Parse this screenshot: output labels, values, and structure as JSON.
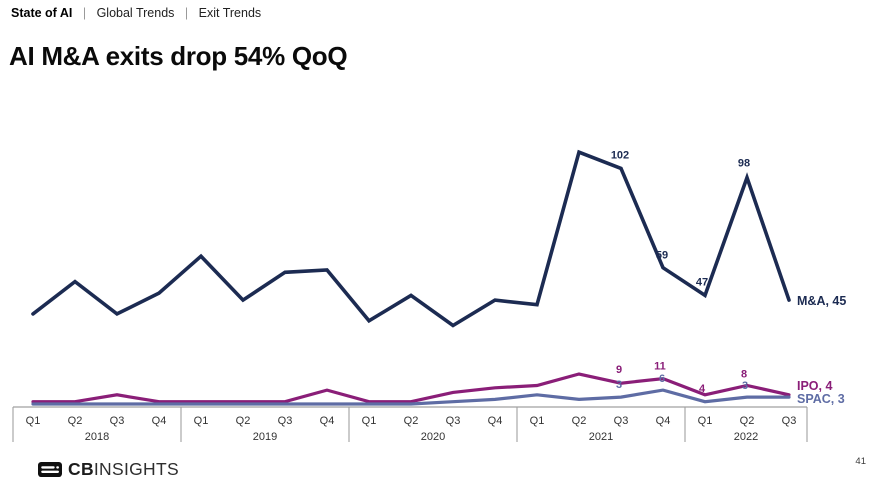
{
  "breadcrumb": {
    "brand": "State of AI",
    "separator": "|",
    "items": [
      "Global Trends",
      "Exit Trends"
    ]
  },
  "title": "AI M&A exits drop 54% QoQ",
  "footer": {
    "logo_cb": "CB",
    "logo_insights": "INSIGHTS",
    "page_number": "41"
  },
  "colors": {
    "mna": "#1c2b52",
    "ipo": "#8a1e78",
    "spac": "#5e6ca4",
    "axis": "#a0a0a0",
    "axis_text": "#333333"
  },
  "chart_data": {
    "type": "line",
    "title": "AI M&A exits drop 54% QoQ",
    "grid": false,
    "legend": "end-of-line-labels",
    "ylim": [
      0,
      115
    ],
    "x_axis": {
      "groups": [
        {
          "year": "2018",
          "quarters": [
            "Q1",
            "Q2",
            "Q3",
            "Q4"
          ]
        },
        {
          "year": "2019",
          "quarters": [
            "Q1",
            "Q2",
            "Q3",
            "Q4"
          ]
        },
        {
          "year": "2020",
          "quarters": [
            "Q1",
            "Q2",
            "Q3",
            "Q4"
          ]
        },
        {
          "year": "2021",
          "quarters": [
            "Q1",
            "Q2",
            "Q3",
            "Q4"
          ]
        },
        {
          "year": "2022",
          "quarters": [
            "Q1",
            "Q2",
            "Q3"
          ]
        }
      ]
    },
    "series": [
      {
        "name": "M&A",
        "color": "#1c2b52",
        "stroke_width": 3.6,
        "values": [
          39,
          53,
          39,
          48,
          64,
          45,
          57,
          58,
          36,
          47,
          34,
          45,
          43,
          109,
          102,
          59,
          47,
          98,
          45
        ],
        "point_labels": [
          {
            "i": 14,
            "text": "102",
            "dx": -1,
            "dy": -10
          },
          {
            "i": 15,
            "text": "59",
            "dx": -1,
            "dy": -9
          },
          {
            "i": 16,
            "text": "47",
            "dx": -3,
            "dy": -10
          },
          {
            "i": 17,
            "text": "98",
            "dx": -3,
            "dy": -11
          }
        ],
        "end_label": "M&A, 45",
        "end_dy": 5
      },
      {
        "name": "IPO",
        "color": "#8a1e78",
        "stroke_width": 3.2,
        "values": [
          1,
          1,
          4,
          1,
          1,
          1,
          1,
          6,
          1,
          1,
          5,
          7,
          8,
          13,
          9,
          11,
          4,
          8,
          4
        ],
        "point_labels": [
          {
            "i": 14,
            "text": "9",
            "dx": -2,
            "dy": -10
          },
          {
            "i": 15,
            "text": "11",
            "dx": -3,
            "dy": -9
          },
          {
            "i": 16,
            "text": "4",
            "dx": -3,
            "dy": -3
          },
          {
            "i": 17,
            "text": "8",
            "dx": -3,
            "dy": -8
          }
        ],
        "end_label": "IPO, 4",
        "end_dy": -5
      },
      {
        "name": "SPAC",
        "color": "#5e6ca4",
        "stroke_width": 3.2,
        "values": [
          0,
          0,
          0,
          0,
          0,
          0,
          0,
          0,
          0,
          0,
          1,
          2,
          4,
          2,
          3,
          6,
          1,
          3,
          3
        ],
        "point_labels": [
          {
            "i": 14,
            "text": "3",
            "dx": -2,
            "dy": -9
          },
          {
            "i": 15,
            "text": "6",
            "dx": -1,
            "dy": -8
          },
          {
            "i": 17,
            "text": "3",
            "dx": -2,
            "dy": -8
          }
        ],
        "end_label": "SPAC, 3",
        "end_dy": 6
      }
    ]
  }
}
